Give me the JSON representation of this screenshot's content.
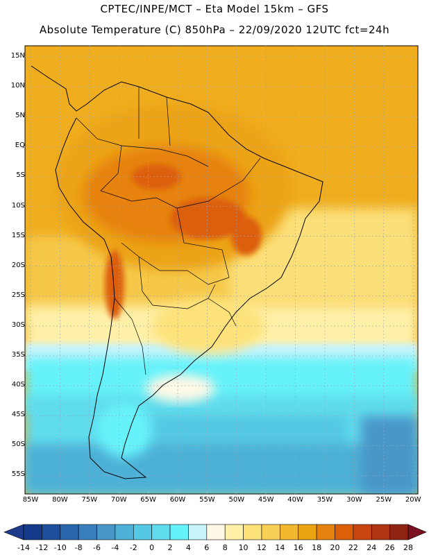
{
  "header": {
    "line1": "CPTEC/INPE/MCT –  Eta Model 15km – GFS",
    "line2": "Absolute Temperature (C) 850hPa – 22/09/2020 12UTC fct=24h"
  },
  "map": {
    "lat_ticks": [
      "15N",
      "10N",
      "5N",
      "EQ",
      "5S",
      "10S",
      "15S",
      "20S",
      "25S",
      "30S",
      "35S",
      "40S",
      "45S",
      "50S",
      "55S"
    ],
    "lon_ticks": [
      "85W",
      "80W",
      "75W",
      "70W",
      "65W",
      "60W",
      "55W",
      "50W",
      "45W",
      "40W",
      "35W",
      "30W",
      "25W",
      "20W"
    ],
    "graticule_color": "#9aa5b5",
    "coastline_color": "#000000"
  },
  "colorbar": {
    "labels": [
      "-14",
      "-12",
      "-10",
      "-8",
      "-6",
      "-4",
      "-2",
      "0",
      "2",
      "4",
      "6",
      "8",
      "10",
      "12",
      "14",
      "16",
      "18",
      "20",
      "22",
      "24",
      "26",
      "28"
    ],
    "colors": [
      "#163a8a",
      "#1e4f9c",
      "#2a66ad",
      "#3a7fbd",
      "#4a96c9",
      "#4eb0d6",
      "#55c8e3",
      "#5fdced",
      "#66f2fa",
      "#c8f4fb",
      "#fff8e6",
      "#fff0a8",
      "#fde27a",
      "#f8cf55",
      "#f1b830",
      "#eca312",
      "#e6820e",
      "#dc5f0a",
      "#c94510",
      "#b03512",
      "#8f2414"
    ]
  }
}
